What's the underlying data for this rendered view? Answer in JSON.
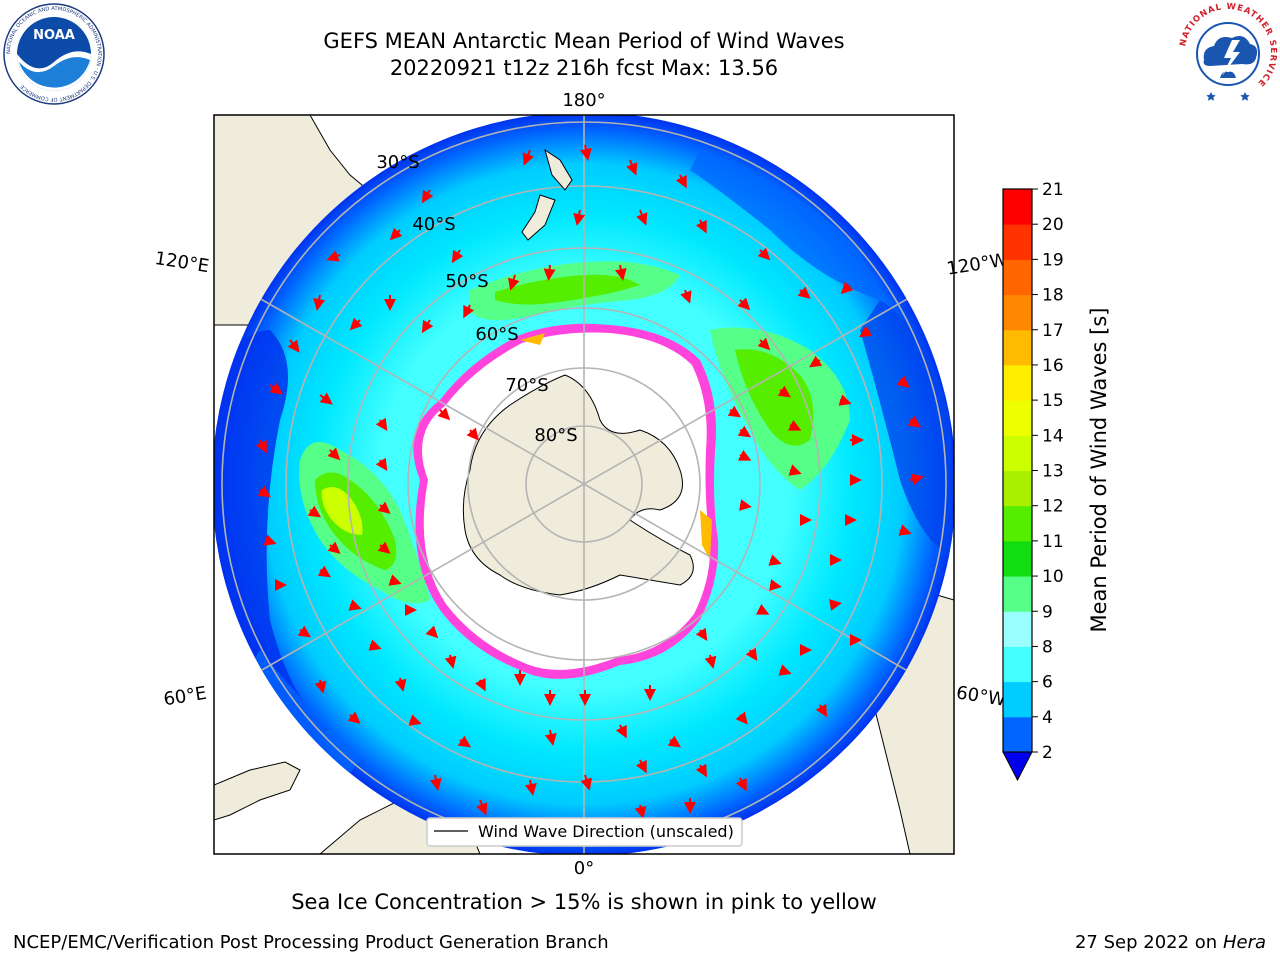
{
  "title": {
    "line1": "GEFS MEAN Antarctic Mean Period of Wind Waves",
    "line2": "20220921 t12z 216h fcst   Max: 13.56"
  },
  "logos": {
    "noaa": {
      "text": "NOAA",
      "ring_text": "NATIONAL OCEANIC AND ATMOSPHERIC ADMINISTRATION · U.S. DEPARTMENT OF COMMERCE"
    },
    "nws": {
      "ring_text": "NATIONAL WEATHER SERVICE"
    }
  },
  "map": {
    "projection": "south-polar-stereographic",
    "longitude_labels": {
      "top": "180°",
      "bottom": "0°",
      "upper_left": "120°E",
      "upper_right": "120°W",
      "lower_left": "60°E",
      "lower_right": "60°W"
    },
    "latitude_labels": [
      "30°S",
      "40°S",
      "50°S",
      "60°S",
      "70°S",
      "80°S"
    ],
    "colors": {
      "land": "#efecdc",
      "ice_free_pole": "#ffffff",
      "grid": "#b4b4b4",
      "arrow": "#ff0000",
      "ice_edge": "#ff44dd",
      "coast": "#000000"
    },
    "legend": {
      "label": "Wind Wave Direction (unscaled)"
    }
  },
  "colorbar": {
    "label": "Mean Period of Wind Waves [s]",
    "ticks": [
      "21",
      "20",
      "19",
      "18",
      "17",
      "16",
      "15",
      "14",
      "13",
      "12",
      "11",
      "10",
      "9",
      "8",
      "6",
      "4",
      "2"
    ],
    "bands": [
      {
        "range": "2-4",
        "color": "#0066ff"
      },
      {
        "range": "4-6",
        "color": "#00ccff"
      },
      {
        "range": "6-8",
        "color": "#44ffff"
      },
      {
        "range": "8-9",
        "color": "#99ffff"
      },
      {
        "range": "9-10",
        "color": "#55ff88"
      },
      {
        "range": "10-11",
        "color": "#11dd11"
      },
      {
        "range": "11-12",
        "color": "#55ee00"
      },
      {
        "range": "12-13",
        "color": "#aaee00"
      },
      {
        "range": "13-14",
        "color": "#ccff00"
      },
      {
        "range": "14-15",
        "color": "#eeff00"
      },
      {
        "range": "15-16",
        "color": "#ffee00"
      },
      {
        "range": "16-17",
        "color": "#ffbb00"
      },
      {
        "range": "17-18",
        "color": "#ff8800"
      },
      {
        "range": "18-19",
        "color": "#ff6600"
      },
      {
        "range": "19-20",
        "color": "#ff3300"
      },
      {
        "range": "20-21",
        "color": "#ff0000"
      }
    ],
    "under_color": "#0000ee"
  },
  "footer": {
    "sea_ice_note": "Sea Ice Concentration > 15% is shown in pink to yellow",
    "credit": "NCEP/EMC/Verification Post Processing Product Generation Branch",
    "date": "27 Sep 2022 on",
    "machine": "Hera"
  }
}
